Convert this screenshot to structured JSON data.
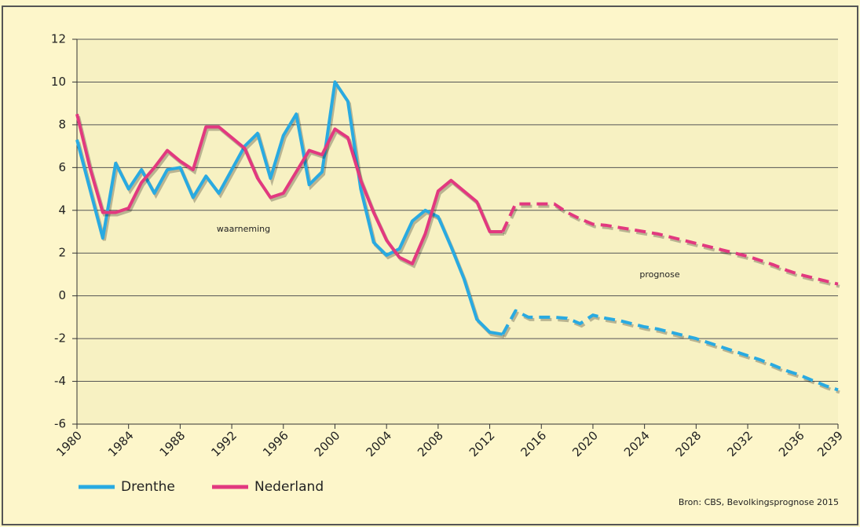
{
  "chart_data": {
    "type": "line",
    "x": [
      1980,
      1981,
      1982,
      1983,
      1984,
      1985,
      1986,
      1987,
      1988,
      1989,
      1990,
      1991,
      1992,
      1993,
      1994,
      1995,
      1996,
      1997,
      1998,
      1999,
      2000,
      2001,
      2002,
      2003,
      2004,
      2005,
      2006,
      2007,
      2008,
      2009,
      2010,
      2011,
      2012,
      2013,
      2014,
      2015,
      2016,
      2017,
      2018,
      2019,
      2020,
      2021,
      2022,
      2023,
      2024,
      2025,
      2026,
      2027,
      2028,
      2029,
      2030,
      2031,
      2032,
      2033,
      2034,
      2035,
      2036,
      2037,
      2038,
      2039
    ],
    "xlim": [
      1980,
      2039
    ],
    "xticks": [
      1980,
      1984,
      1988,
      1992,
      1996,
      2000,
      2004,
      2008,
      2012,
      2016,
      2020,
      2024,
      2028,
      2032,
      2036,
      2039
    ],
    "ylim": [
      -6,
      12
    ],
    "yticks": [
      -6,
      -4,
      -2,
      0,
      2,
      4,
      6,
      8,
      10,
      12
    ],
    "grid": true,
    "series": [
      {
        "name": "Drenthe",
        "color": "#29aae1",
        "values": [
          7.3,
          5.0,
          2.7,
          6.2,
          5.0,
          5.9,
          4.8,
          5.9,
          6.0,
          4.6,
          5.6,
          4.8,
          5.9,
          7.0,
          7.6,
          5.5,
          7.5,
          8.5,
          5.2,
          5.8,
          10.0,
          9.1,
          5.0,
          2.5,
          1.9,
          2.2,
          3.5,
          4.0,
          3.7,
          2.3,
          0.8,
          -1.1,
          -1.7,
          -1.8,
          null,
          null,
          null,
          null,
          null,
          null,
          null,
          null,
          null,
          null,
          null,
          null,
          null,
          null,
          null,
          null,
          null,
          null,
          null,
          null,
          null,
          null,
          null,
          null,
          null,
          null
        ],
        "prognosis_values": [
          null,
          null,
          null,
          null,
          null,
          null,
          null,
          null,
          null,
          null,
          null,
          null,
          null,
          null,
          null,
          null,
          null,
          null,
          null,
          null,
          null,
          null,
          null,
          null,
          null,
          null,
          null,
          null,
          null,
          null,
          null,
          null,
          null,
          -1.8,
          -0.7,
          -1.0,
          -1.0,
          -1.0,
          -1.05,
          -1.3,
          -0.9,
          -1.05,
          -1.15,
          -1.3,
          -1.45,
          -1.55,
          -1.7,
          -1.85,
          -2.0,
          -2.2,
          -2.4,
          -2.6,
          -2.8,
          -3.0,
          -3.25,
          -3.5,
          -3.7,
          -3.95,
          -4.2,
          -4.4
        ]
      },
      {
        "name": "Nederland",
        "color": "#e2397f",
        "values": [
          8.5,
          6.0,
          3.9,
          3.9,
          4.1,
          5.3,
          6.0,
          6.8,
          6.3,
          5.9,
          7.9,
          7.9,
          7.4,
          6.9,
          5.5,
          4.6,
          4.8,
          5.8,
          6.8,
          6.6,
          7.8,
          7.4,
          5.4,
          3.9,
          2.6,
          1.8,
          1.5,
          2.9,
          4.9,
          5.4,
          4.9,
          4.4,
          3.0,
          3.0,
          null,
          null,
          null,
          null,
          null,
          null,
          null,
          null,
          null,
          null,
          null,
          null,
          null,
          null,
          null,
          null,
          null,
          null,
          null,
          null,
          null,
          null,
          null,
          null,
          null,
          null
        ],
        "prognosis_values": [
          null,
          null,
          null,
          null,
          null,
          null,
          null,
          null,
          null,
          null,
          null,
          null,
          null,
          null,
          null,
          null,
          null,
          null,
          null,
          null,
          null,
          null,
          null,
          null,
          null,
          null,
          null,
          null,
          null,
          null,
          null,
          null,
          null,
          3.0,
          4.3,
          4.3,
          4.3,
          4.3,
          3.9,
          3.6,
          3.35,
          3.3,
          3.2,
          3.1,
          3.0,
          2.9,
          2.75,
          2.6,
          2.45,
          2.3,
          2.15,
          2.0,
          1.85,
          1.65,
          1.45,
          1.2,
          1.0,
          0.85,
          0.7,
          0.55
        ]
      }
    ],
    "annotations": [
      "waarneming",
      "prognose"
    ],
    "source": "Bron: CBS, Bevolkingsprognose 2015"
  }
}
